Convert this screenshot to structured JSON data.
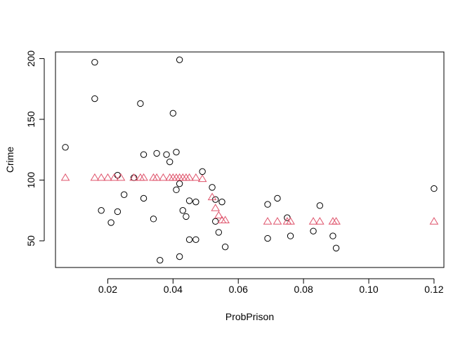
{
  "chart_data": {
    "type": "scatter",
    "title": "",
    "xlabel": "ProbPrison",
    "ylabel": "Crime",
    "xlim": [
      0.00397,
      0.12303
    ],
    "ylim": [
      28.04,
      205.46
    ],
    "x_ticks": [
      0.02,
      0.04,
      0.06,
      0.08,
      0.1,
      0.12
    ],
    "x_tick_labels": [
      "0.02",
      "0.04",
      "0.06",
      "0.08",
      "0.10",
      "0.12"
    ],
    "y_ticks": [
      50,
      100,
      150,
      200
    ],
    "y_tick_labels": [
      "50",
      "100",
      "150",
      "200"
    ],
    "grid": false,
    "legend": "none",
    "series": [
      {
        "marker": "circle",
        "color": "#000000",
        "points": [
          [
            0.007,
            127
          ],
          [
            0.016,
            197
          ],
          [
            0.016,
            167
          ],
          [
            0.018,
            75
          ],
          [
            0.021,
            65
          ],
          [
            0.023,
            104
          ],
          [
            0.023,
            74
          ],
          [
            0.025,
            88
          ],
          [
            0.028,
            102
          ],
          [
            0.03,
            163
          ],
          [
            0.031,
            121
          ],
          [
            0.031,
            85
          ],
          [
            0.034,
            68
          ],
          [
            0.035,
            122
          ],
          [
            0.036,
            34
          ],
          [
            0.038,
            121
          ],
          [
            0.039,
            115
          ],
          [
            0.04,
            155
          ],
          [
            0.041,
            123
          ],
          [
            0.041,
            92
          ],
          [
            0.042,
            199
          ],
          [
            0.042,
            97
          ],
          [
            0.042,
            37
          ],
          [
            0.043,
            75
          ],
          [
            0.044,
            70
          ],
          [
            0.045,
            83
          ],
          [
            0.045,
            51
          ],
          [
            0.047,
            82
          ],
          [
            0.047,
            51
          ],
          [
            0.049,
            107
          ],
          [
            0.052,
            94
          ],
          [
            0.053,
            84
          ],
          [
            0.053,
            66
          ],
          [
            0.054,
            57
          ],
          [
            0.055,
            82
          ],
          [
            0.056,
            45
          ],
          [
            0.069,
            80
          ],
          [
            0.069,
            52
          ],
          [
            0.072,
            85
          ],
          [
            0.075,
            69
          ],
          [
            0.076,
            54
          ],
          [
            0.083,
            58
          ],
          [
            0.085,
            79
          ],
          [
            0.089,
            54
          ],
          [
            0.09,
            44
          ],
          [
            0.12,
            93
          ]
        ]
      },
      {
        "marker": "triangle",
        "color": "#df536b",
        "points": [
          [
            0.007,
            102
          ],
          [
            0.016,
            102
          ],
          [
            0.018,
            102
          ],
          [
            0.02,
            102
          ],
          [
            0.022,
            102
          ],
          [
            0.024,
            102
          ],
          [
            0.028,
            102
          ],
          [
            0.03,
            102
          ],
          [
            0.031,
            102
          ],
          [
            0.034,
            102
          ],
          [
            0.035,
            102
          ],
          [
            0.037,
            102
          ],
          [
            0.039,
            102
          ],
          [
            0.04,
            102
          ],
          [
            0.041,
            102
          ],
          [
            0.042,
            102
          ],
          [
            0.043,
            102
          ],
          [
            0.044,
            102
          ],
          [
            0.045,
            102
          ],
          [
            0.047,
            102
          ],
          [
            0.049,
            101
          ],
          [
            0.052,
            86
          ],
          [
            0.053,
            77
          ],
          [
            0.054,
            71
          ],
          [
            0.055,
            67
          ],
          [
            0.056,
            67
          ],
          [
            0.069,
            66
          ],
          [
            0.072,
            66
          ],
          [
            0.075,
            66
          ],
          [
            0.076,
            66
          ],
          [
            0.083,
            66
          ],
          [
            0.085,
            66
          ],
          [
            0.089,
            66
          ],
          [
            0.09,
            66
          ],
          [
            0.12,
            66
          ]
        ]
      }
    ]
  }
}
